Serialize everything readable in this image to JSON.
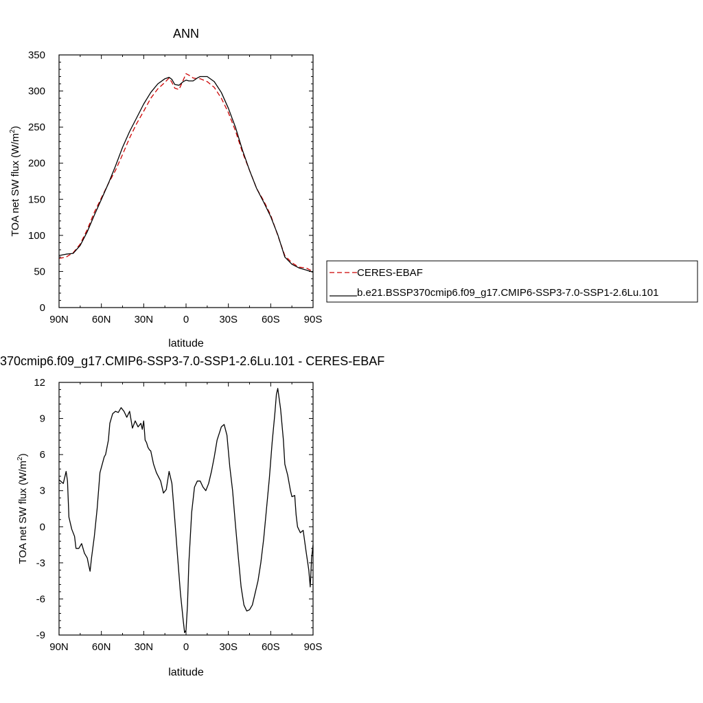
{
  "colors": {
    "ceres": "#cc0000",
    "model": "#000000",
    "axis": "#000000",
    "background": "#ffffff"
  },
  "chart_data": [
    {
      "type": "line",
      "title": "ANN",
      "xlabel": "latitude",
      "ylabel": "TOA net SW flux (W/m²)",
      "ylabel_main": "TOA net SW flux (W/m",
      "ylabel_sup": "2",
      "ylabel_close": ")",
      "xlim": [
        90,
        -90
      ],
      "ylim": [
        0,
        350
      ],
      "xticks": [
        90,
        60,
        30,
        0,
        -30,
        -60,
        -90
      ],
      "xtick_labels": [
        "90N",
        "60N",
        "30N",
        "0",
        "30S",
        "60S",
        "90S"
      ],
      "yticks": [
        0,
        50,
        100,
        150,
        200,
        250,
        300,
        350
      ],
      "ytick_labels": [
        "0",
        "50",
        "100",
        "150",
        "200",
        "250",
        "300",
        "350"
      ],
      "legend": {
        "placement": "right-outside",
        "entries": [
          "CERES-EBAF",
          "b.e21.BSSP370cmip6.f09_g17.CMIP6-SSP3-7.0-SSP1-2.6Lu.101"
        ]
      },
      "series": [
        {
          "name": "CERES-EBAF",
          "style": "dashed",
          "x": [
            90,
            85,
            80,
            75,
            70,
            65,
            60,
            55,
            50,
            45,
            40,
            35,
            30,
            25,
            20,
            15,
            12,
            10,
            8,
            5,
            2,
            0,
            -2,
            -5,
            -8,
            -10,
            -15,
            -20,
            -25,
            -30,
            -35,
            -40,
            -45,
            -50,
            -55,
            -60,
            -65,
            -70,
            -75,
            -80,
            -85,
            -90
          ],
          "y": [
            68,
            70,
            76,
            88,
            108,
            132,
            152,
            172,
            190,
            212,
            235,
            255,
            272,
            290,
            303,
            312,
            318,
            312,
            304,
            302,
            315,
            324,
            322,
            318,
            317,
            317,
            313,
            305,
            290,
            270,
            245,
            215,
            190,
            165,
            148,
            128,
            100,
            72,
            62,
            56,
            55,
            50
          ]
        },
        {
          "name": "b.e21.BSSP370cmip6.f09_g17.CMIP6-SSP3-7.0-SSP1-2.6Lu.101",
          "style": "solid",
          "x": [
            90,
            85,
            80,
            75,
            70,
            65,
            60,
            55,
            50,
            45,
            40,
            35,
            30,
            25,
            20,
            15,
            12,
            10,
            8,
            5,
            2,
            0,
            -2,
            -5,
            -8,
            -10,
            -15,
            -20,
            -25,
            -30,
            -35,
            -40,
            -45,
            -50,
            -55,
            -60,
            -65,
            -70,
            -75,
            -80,
            -85,
            -90
          ],
          "y": [
            72,
            74,
            75,
            86,
            105,
            128,
            150,
            172,
            196,
            222,
            244,
            263,
            282,
            298,
            310,
            317,
            319,
            316,
            309,
            308,
            313,
            315,
            314,
            314,
            318,
            320,
            320,
            313,
            298,
            276,
            250,
            218,
            190,
            165,
            146,
            126,
            101,
            70,
            60,
            55,
            52,
            49
          ]
        }
      ]
    },
    {
      "type": "line",
      "title": "370cmip6.f09_g17.CMIP6-SSP3-7.0-SSP1-2.6Lu.101 - CERES-EBAF",
      "xlabel": "latitude",
      "ylabel": "TOA net SW flux (W/m²)",
      "ylabel_main": "TOA net SW flux (W/m",
      "ylabel_sup": "2",
      "ylabel_close": ")",
      "xlim": [
        90,
        -90
      ],
      "ylim": [
        -9,
        12
      ],
      "xticks": [
        90,
        60,
        30,
        0,
        -30,
        -60,
        -90
      ],
      "xtick_labels": [
        "90N",
        "60N",
        "30N",
        "0",
        "30S",
        "60S",
        "90S"
      ],
      "yticks": [
        -9,
        -6,
        -3,
        0,
        3,
        6,
        9,
        12
      ],
      "ytick_labels": [
        "-9",
        "-6",
        "-3",
        "0",
        "3",
        "6",
        "9",
        "12"
      ],
      "series": [
        {
          "style": "solid",
          "x": [
            90,
            87,
            85,
            84,
            83,
            81,
            79,
            78,
            76,
            74,
            72,
            70,
            69,
            68,
            67,
            65,
            63,
            61,
            58,
            57,
            55,
            54,
            52,
            50,
            48,
            46,
            44,
            42,
            40,
            38,
            36,
            34,
            32,
            31,
            30,
            29,
            28,
            27,
            26,
            25,
            23,
            21,
            18,
            16,
            14,
            12,
            10,
            8,
            6,
            4,
            2,
            1,
            0,
            -1,
            -2,
            -4,
            -6,
            -8,
            -10,
            -12,
            -14,
            -16,
            -18,
            -20,
            -22,
            -25,
            -27,
            -29,
            -31,
            -33,
            -35,
            -37,
            -39,
            -41,
            -43,
            -45,
            -47,
            -49,
            -51,
            -53,
            -55,
            -57,
            -59,
            -61,
            -63,
            -64,
            -65,
            -67,
            -69,
            -70,
            -72,
            -74,
            -75,
            -77,
            -78,
            -79,
            -81,
            -83,
            -85,
            -87,
            -88,
            -89,
            -90
          ],
          "y": [
            3.9,
            3.6,
            4.6,
            3.8,
            0.8,
            -0.2,
            -0.8,
            -1.8,
            -1.8,
            -1.4,
            -2.2,
            -2.6,
            -3.2,
            -3.7,
            -2.6,
            -0.8,
            1.5,
            4.5,
            5.8,
            6.0,
            7.2,
            8.6,
            9.4,
            9.6,
            9.5,
            9.9,
            9.6,
            9.1,
            9.6,
            8.2,
            8.8,
            8.3,
            8.6,
            8.1,
            8.8,
            7.2,
            7.0,
            6.6,
            6.4,
            6.3,
            5.2,
            4.5,
            3.8,
            2.8,
            3.1,
            4.6,
            3.6,
            0.6,
            -2.5,
            -5.5,
            -7.8,
            -8.8,
            -8.6,
            -6.5,
            -3.0,
            1.2,
            3.3,
            3.8,
            3.8,
            3.3,
            3.0,
            3.6,
            4.6,
            5.8,
            7.2,
            8.3,
            8.5,
            7.6,
            5.0,
            3.0,
            0.2,
            -2.5,
            -5.0,
            -6.5,
            -7.0,
            -6.9,
            -6.5,
            -5.5,
            -4.5,
            -3.0,
            -1.0,
            1.5,
            4.0,
            7.0,
            9.5,
            11.0,
            11.5,
            9.8,
            7.2,
            5.2,
            4.3,
            3.0,
            2.5,
            2.6,
            1.0,
            0.0,
            -0.5,
            -0.3,
            -2.0,
            -3.6,
            -5.0,
            -2.6,
            -1.5
          ]
        }
      ]
    }
  ]
}
